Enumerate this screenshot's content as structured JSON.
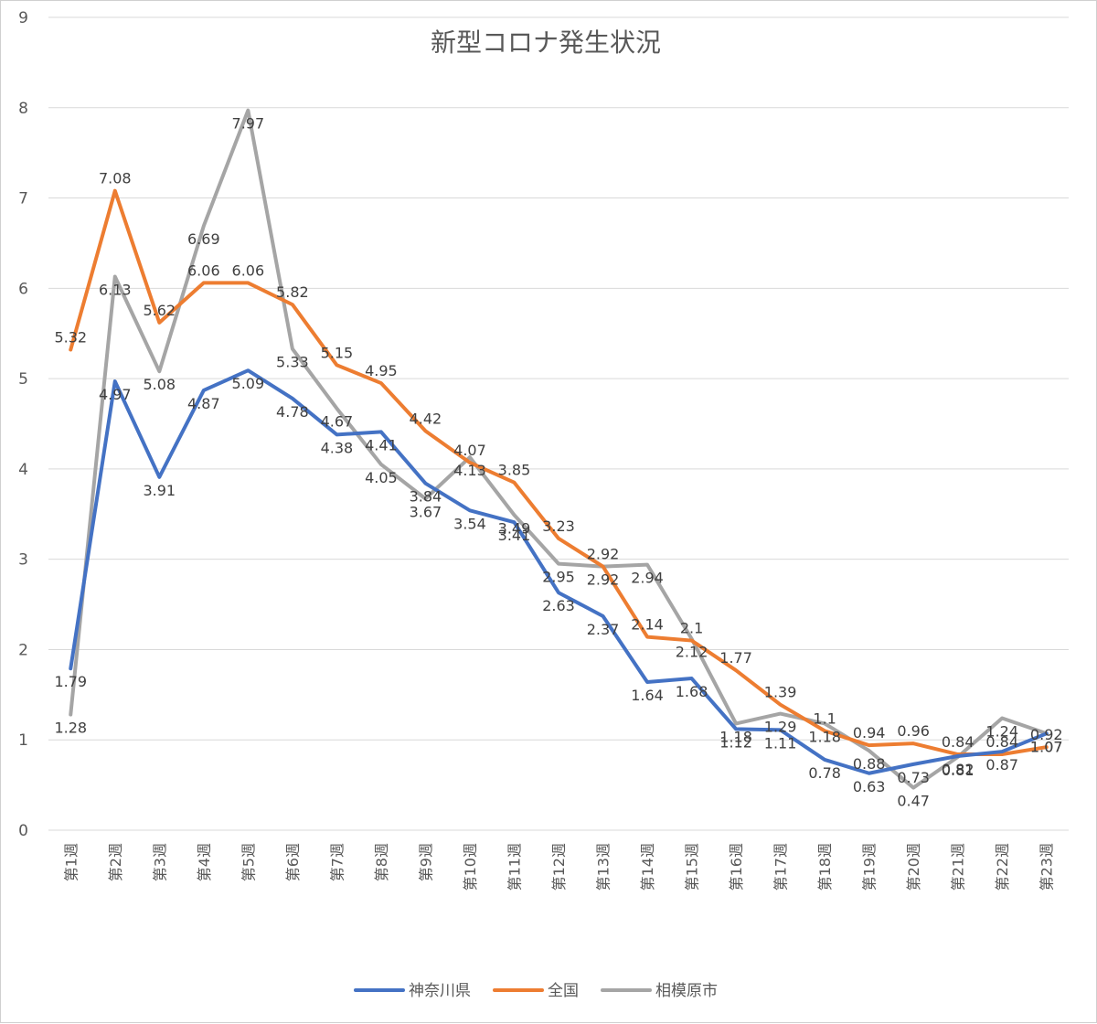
{
  "chart_data": {
    "type": "line",
    "title": "新型コロナ発生状況",
    "categories": [
      "第1週",
      "第2週",
      "第3週",
      "第4週",
      "第5週",
      "第6週",
      "第7週",
      "第8週",
      "第9週",
      "第10週",
      "第11週",
      "第12週",
      "第13週",
      "第14週",
      "第15週",
      "第16週",
      "第17週",
      "第18週",
      "第19週",
      "第20週",
      "第21週",
      "第22週",
      "第23週"
    ],
    "series": [
      {
        "name": "神奈川県",
        "color": "#4472C4",
        "values": [
          1.79,
          4.97,
          3.91,
          4.87,
          5.09,
          4.78,
          4.38,
          4.41,
          3.84,
          3.54,
          3.41,
          2.63,
          2.37,
          1.64,
          1.68,
          1.12,
          1.11,
          0.78,
          0.63,
          0.73,
          0.82,
          0.87,
          1.07
        ]
      },
      {
        "name": "全国",
        "color": "#ED7D31",
        "values": [
          5.32,
          7.08,
          5.62,
          6.06,
          6.06,
          5.82,
          5.15,
          4.95,
          4.42,
          4.07,
          3.85,
          3.23,
          2.92,
          2.14,
          2.1,
          1.77,
          1.39,
          1.1,
          0.94,
          0.96,
          0.84,
          0.84,
          0.92
        ]
      },
      {
        "name": "相模原市",
        "color": "#A5A5A5",
        "values": [
          1.28,
          6.13,
          5.08,
          6.69,
          7.97,
          5.33,
          4.67,
          4.05,
          3.67,
          4.13,
          3.49,
          2.95,
          2.92,
          2.94,
          2.12,
          1.18,
          1.29,
          1.18,
          0.88,
          0.47,
          0.81,
          1.24,
          1.07
        ]
      }
    ],
    "ylim": [
      0,
      9
    ],
    "yticks": [
      "0",
      "1",
      "2",
      "3",
      "4",
      "5",
      "6",
      "7",
      "8",
      "9"
    ],
    "grid": true,
    "legend_position": "bottom",
    "data_labels": true,
    "xlabel": "",
    "ylabel": ""
  }
}
